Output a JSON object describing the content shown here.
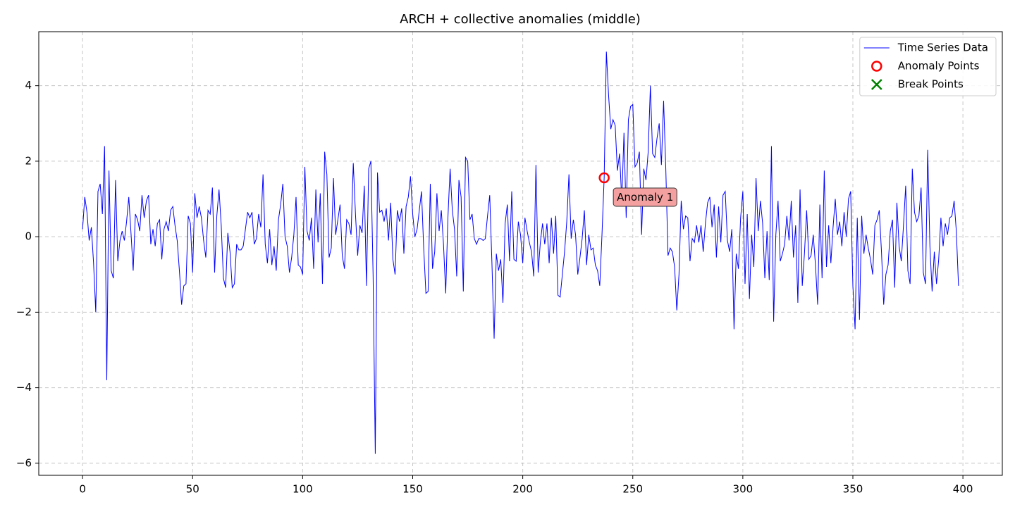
{
  "chart_data": {
    "type": "line",
    "title": "ARCH + collective anomalies (middle)",
    "x": [
      0,
      1,
      2,
      3,
      4,
      5,
      6,
      7,
      8,
      9,
      10,
      11,
      12,
      13,
      14,
      15,
      16,
      17,
      18,
      19,
      20,
      21,
      22,
      23,
      24,
      25,
      26,
      27,
      28,
      29,
      30,
      31,
      32,
      33,
      34,
      35,
      36,
      37,
      38,
      39,
      40,
      41,
      42,
      43,
      44,
      45,
      46,
      47,
      48,
      49,
      50,
      51,
      52,
      53,
      54,
      55,
      56,
      57,
      58,
      59,
      60,
      61,
      62,
      63,
      64,
      65,
      66,
      67,
      68,
      69,
      70,
      71,
      72,
      73,
      74,
      75,
      76,
      77,
      78,
      79,
      80,
      81,
      82,
      83,
      84,
      85,
      86,
      87,
      88,
      89,
      90,
      91,
      92,
      93,
      94,
      95,
      96,
      97,
      98,
      99,
      100,
      101,
      102,
      103,
      104,
      105,
      106,
      107,
      108,
      109,
      110,
      111,
      112,
      113,
      114,
      115,
      116,
      117,
      118,
      119,
      120,
      121,
      122,
      123,
      124,
      125,
      126,
      127,
      128,
      129,
      130,
      131,
      132,
      133,
      134,
      135,
      136,
      137,
      138,
      139,
      140,
      141,
      142,
      143,
      144,
      145,
      146,
      147,
      148,
      149,
      150,
      151,
      152,
      153,
      154,
      155,
      156,
      157,
      158,
      159,
      160,
      161,
      162,
      163,
      164,
      165,
      166,
      167,
      168,
      169,
      170,
      171,
      172,
      173,
      174,
      175,
      176,
      177,
      178,
      179,
      180,
      181,
      182,
      183,
      184,
      185,
      186,
      187,
      188,
      189,
      190,
      191,
      192,
      193,
      194,
      195,
      196,
      197,
      198,
      199,
      200,
      201,
      202,
      203,
      204,
      205,
      206,
      207,
      208,
      209,
      210,
      211,
      212,
      213,
      214,
      215,
      216,
      217,
      218,
      219,
      220,
      221,
      222,
      223,
      224,
      225,
      226,
      227,
      228,
      229,
      230,
      231,
      232,
      233,
      234,
      235,
      236,
      237,
      238,
      239,
      240,
      241,
      242,
      243,
      244,
      245,
      246,
      247,
      248,
      249,
      250,
      251,
      252,
      253,
      254,
      255,
      256,
      257,
      258,
      259,
      260,
      261,
      262,
      263,
      264,
      265,
      266,
      267,
      268,
      269,
      270,
      271,
      272,
      273,
      274,
      275,
      276,
      277,
      278,
      279,
      280,
      281,
      282,
      283,
      284,
      285,
      286,
      287,
      288,
      289,
      290,
      291,
      292,
      293,
      294,
      295,
      296,
      297,
      298,
      299,
      300,
      301,
      302,
      303,
      304,
      305,
      306,
      307,
      308,
      309,
      310,
      311,
      312,
      313,
      314,
      315,
      316,
      317,
      318,
      319,
      320,
      321,
      322,
      323,
      324,
      325,
      326,
      327,
      328,
      329,
      330,
      331,
      332,
      333,
      334,
      335,
      336,
      337,
      338,
      339,
      340,
      341,
      342,
      343,
      344,
      345,
      346,
      347,
      348,
      349,
      350,
      351,
      352,
      353,
      354,
      355,
      356,
      357,
      358,
      359,
      360,
      361,
      362,
      363,
      364,
      365,
      366,
      367,
      368,
      369,
      370,
      371,
      372,
      373,
      374,
      375,
      376,
      377,
      378,
      379,
      380,
      381,
      382,
      383,
      384,
      385,
      386,
      387,
      388,
      389,
      390,
      391,
      392,
      393,
      394,
      395,
      396,
      397,
      398
    ],
    "series": [
      {
        "name": "Time Series Data",
        "color": "#0000ff",
        "values": [
          0.2,
          1.05,
          0.65,
          -0.1,
          0.25,
          -0.7,
          -2.0,
          1.2,
          1.4,
          0.6,
          2.4,
          -3.8,
          1.75,
          -0.9,
          -1.1,
          1.5,
          -0.65,
          -0.1,
          0.15,
          -0.1,
          0.4,
          1.05,
          0.1,
          -0.9,
          0.6,
          0.45,
          0.15,
          1.1,
          0.5,
          0.95,
          1.1,
          -0.2,
          0.2,
          -0.25,
          0.35,
          0.45,
          -0.6,
          0.2,
          0.4,
          0.15,
          0.7,
          0.8,
          0.3,
          -0.1,
          -0.9,
          -1.8,
          -1.3,
          -1.25,
          0.55,
          0.35,
          -0.95,
          1.15,
          0.5,
          0.8,
          0.5,
          -0.1,
          -0.55,
          0.7,
          0.6,
          1.3,
          -0.95,
          0.55,
          1.25,
          0.3,
          -1.1,
          -1.35,
          0.1,
          -0.4,
          -1.35,
          -1.25,
          -0.2,
          -0.35,
          -0.35,
          -0.25,
          0.2,
          0.65,
          0.5,
          0.65,
          -0.2,
          -0.05,
          0.6,
          0.25,
          1.65,
          -0.2,
          -0.7,
          0.2,
          -0.75,
          -0.25,
          -0.9,
          0.45,
          0.85,
          1.4,
          0,
          -0.25,
          -0.95,
          -0.55,
          0.05,
          1.05,
          -0.75,
          -0.8,
          -1.0,
          1.85,
          0.15,
          -0.1,
          0.5,
          -0.85,
          1.25,
          -0.15,
          1.15,
          -1.25,
          2.25,
          1.65,
          -0.55,
          -0.3,
          1.55,
          0.05,
          0.45,
          0.85,
          -0.5,
          -0.85,
          0.45,
          0.35,
          0.05,
          1.95,
          0.6,
          -0.5,
          0.3,
          0.1,
          1.35,
          -1.3,
          1.8,
          2.0,
          -1.0,
          -5.75,
          1.7,
          0.65,
          0.7,
          0.4,
          0.75,
          -0.1,
          0.9,
          -0.6,
          -1.0,
          0.7,
          0.4,
          0.75,
          -0.45,
          0.8,
          1.05,
          1.6,
          0.6,
          0.0,
          0.2,
          0.7,
          1.2,
          -0.3,
          -1.5,
          -1.45,
          1.4,
          -0.85,
          -0.4,
          1.15,
          0.15,
          0.7,
          -0.2,
          -1.5,
          0.5,
          1.8,
          0.7,
          0.2,
          -1.05,
          1.5,
          1.05,
          -1.45,
          2.1,
          2.0,
          0.45,
          0.6,
          -0.05,
          -0.2,
          -0.05,
          -0.05,
          -0.1,
          -0.05,
          0.55,
          1.1,
          -0.7,
          -2.7,
          -0.45,
          -0.9,
          -0.6,
          -1.75,
          0.35,
          0.85,
          -0.65,
          1.2,
          -0.6,
          -0.65,
          0.4,
          0.05,
          -0.7,
          0.5,
          0.15,
          -0.15,
          -0.4,
          -1.05,
          1.9,
          -0.95,
          -0.15,
          0.35,
          -0.2,
          0.35,
          -0.7,
          0.5,
          -0.45,
          0.55,
          -1.55,
          -1.6,
          -1.0,
          -0.4,
          0.4,
          1.65,
          -0.05,
          0.45,
          0.05,
          -1.0,
          -0.55,
          -0.05,
          0.7,
          -0.75,
          0.05,
          -0.35,
          -0.3,
          -0.75,
          -0.9,
          -1.3,
          0.05,
          1.56,
          4.9,
          3.75,
          2.85,
          3.1,
          2.95,
          1.75,
          2.2,
          0.95,
          2.75,
          0.5,
          3.1,
          3.45,
          3.5,
          1.85,
          1.95,
          2.25,
          0.05,
          1.8,
          1.5,
          2.25,
          4.0,
          2.2,
          2.1,
          2.6,
          3.0,
          1.9,
          3.6,
          1.8,
          -0.5,
          -0.3,
          -0.4,
          -0.8,
          -1.95,
          -1.0,
          0.95,
          0.2,
          0.55,
          0.5,
          -0.65,
          -0.05,
          -0.15,
          0.3,
          -0.15,
          0.3,
          -0.4,
          0.35,
          0.9,
          1.05,
          0.25,
          0.85,
          -0.55,
          0.8,
          -0.15,
          1.1,
          1.2,
          -0.1,
          -0.4,
          0.2,
          -2.45,
          -0.45,
          -0.85,
          0.5,
          1.2,
          -1.25,
          0.6,
          -1.65,
          0.05,
          -0.8,
          1.55,
          0.15,
          0.95,
          0.35,
          -1.1,
          0.15,
          -1.15,
          2.4,
          -2.25,
          0.05,
          0.95,
          -0.65,
          -0.45,
          -0.2,
          0.55,
          -0.1,
          0.95,
          -0.55,
          0.3,
          -1.75,
          1.25,
          -1.3,
          -0.45,
          0.7,
          -0.6,
          -0.5,
          0.05,
          -0.75,
          -1.8,
          0.85,
          -1.1,
          1.75,
          -0.8,
          0.3,
          -0.7,
          0.25,
          1.0,
          0.05,
          0.4,
          -0.25,
          0.65,
          0.0,
          1.0,
          1.2,
          -1.3,
          -2.45,
          0.5,
          -2.2,
          0.55,
          -0.45,
          0.05,
          -0.3,
          -0.6,
          -1.0,
          0.3,
          0.45,
          0.7,
          -0.4,
          -1.8,
          -1.0,
          -0.75,
          0.15,
          0.45,
          -1.35,
          0.9,
          -0.25,
          -0.65,
          0.3,
          1.35,
          -0.9,
          -1.25,
          1.8,
          0.65,
          0.4,
          0.55,
          1.3,
          -0.95,
          -1.25,
          2.3,
          -0.25,
          -1.45,
          -0.4,
          -1.25,
          -0.6,
          0.5,
          -0.25,
          0.35,
          0.05,
          0.5,
          0.55,
          0.95,
          0.15,
          -1.3
        ]
      }
    ],
    "anomalies": {
      "name": "Anomaly Points",
      "color": "#ff0000",
      "x": [
        237
      ],
      "y": [
        1.56
      ]
    },
    "break_points": {
      "name": "Break Points",
      "color": "#008000",
      "x": [],
      "y": []
    },
    "annotations": [
      {
        "text": "Anomaly 1",
        "x": 237,
        "y": 1.56,
        "color": "#f4a0a0"
      }
    ],
    "xlim": [
      -19.9,
      417.9
    ],
    "ylim": [
      -6.32,
      5.43
    ],
    "xticks": [
      0,
      50,
      100,
      150,
      200,
      250,
      300,
      350,
      400
    ],
    "yticks": [
      {
        "value": -6,
        "label": "−6"
      },
      {
        "value": -4,
        "label": "−4"
      },
      {
        "value": -2,
        "label": "−2"
      },
      0,
      2,
      4
    ],
    "grid": true,
    "legend": "upper right"
  }
}
